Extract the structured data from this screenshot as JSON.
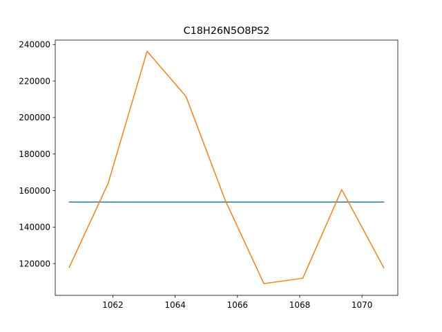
{
  "chart_data": {
    "type": "line",
    "title": "C18H26N5O8PS2",
    "xlabel": "",
    "ylabel": "",
    "xlim": [
      1060.15,
      1071.15
    ],
    "ylim": [
      102600,
      242400
    ],
    "x_ticks": [
      1062,
      1064,
      1066,
      1068,
      1070
    ],
    "y_ticks": [
      120000,
      140000,
      160000,
      180000,
      200000,
      220000,
      240000
    ],
    "grid": false,
    "series": [
      {
        "color": "#1f77b4",
        "x": [
          1060.6,
          1070.7
        ],
        "y": [
          153700,
          153700
        ]
      },
      {
        "color": "#ff7f0e",
        "x": [
          1060.6,
          1061.85,
          1063.1,
          1064.35,
          1065.6,
          1066.85,
          1068.1,
          1069.35,
          1070.7
        ],
        "y": [
          118000,
          164000,
          236300,
          211500,
          155000,
          109000,
          112000,
          160500,
          117700
        ]
      }
    ]
  }
}
